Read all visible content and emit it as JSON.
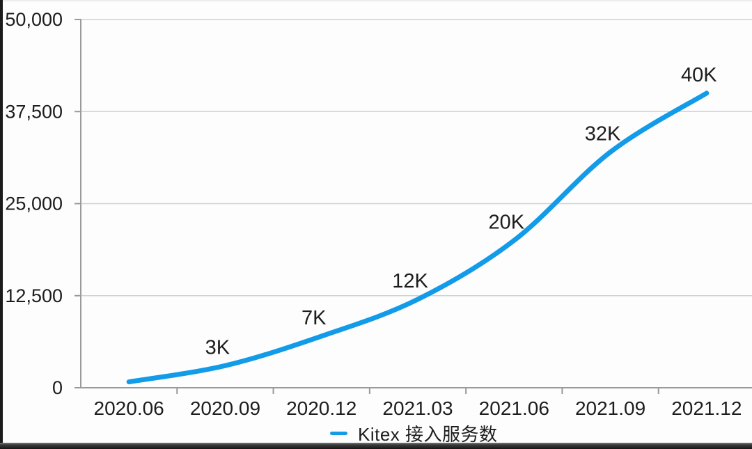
{
  "chart_data": {
    "type": "line",
    "title": "",
    "categories": [
      "2020.06",
      "2020.09",
      "2020.12",
      "2021.03",
      "2021.06",
      "2021.09",
      "2021.12"
    ],
    "series": [
      {
        "name": "Kitex 接入服务数",
        "values": [
          800,
          3000,
          7000,
          12000,
          20000,
          32000,
          40000
        ],
        "point_labels": [
          "",
          "3K",
          "7K",
          "12K",
          "20K",
          "32K",
          "40K"
        ],
        "color": "#129be8"
      }
    ],
    "xlabel": "",
    "ylabel": "",
    "ylim": [
      0,
      50000
    ],
    "yticks": [
      {
        "value": 0,
        "label": "0"
      },
      {
        "value": 12500,
        "label": "12,500"
      },
      {
        "value": 25000,
        "label": "25,000"
      },
      {
        "value": 37500,
        "label": "37,500"
      },
      {
        "value": 50000,
        "label": "50,000"
      }
    ],
    "grid": "horizontal",
    "legend": {
      "position": "bottom",
      "label": "Kitex 接入服务数",
      "marker_color": "#129be8"
    },
    "colors": {
      "axis": "#9a9a9a",
      "gridline": "#d2d2d2",
      "text": "#1d1d1d",
      "background": "#fdfdfd",
      "frame_edge": "#1b1b1b"
    }
  }
}
